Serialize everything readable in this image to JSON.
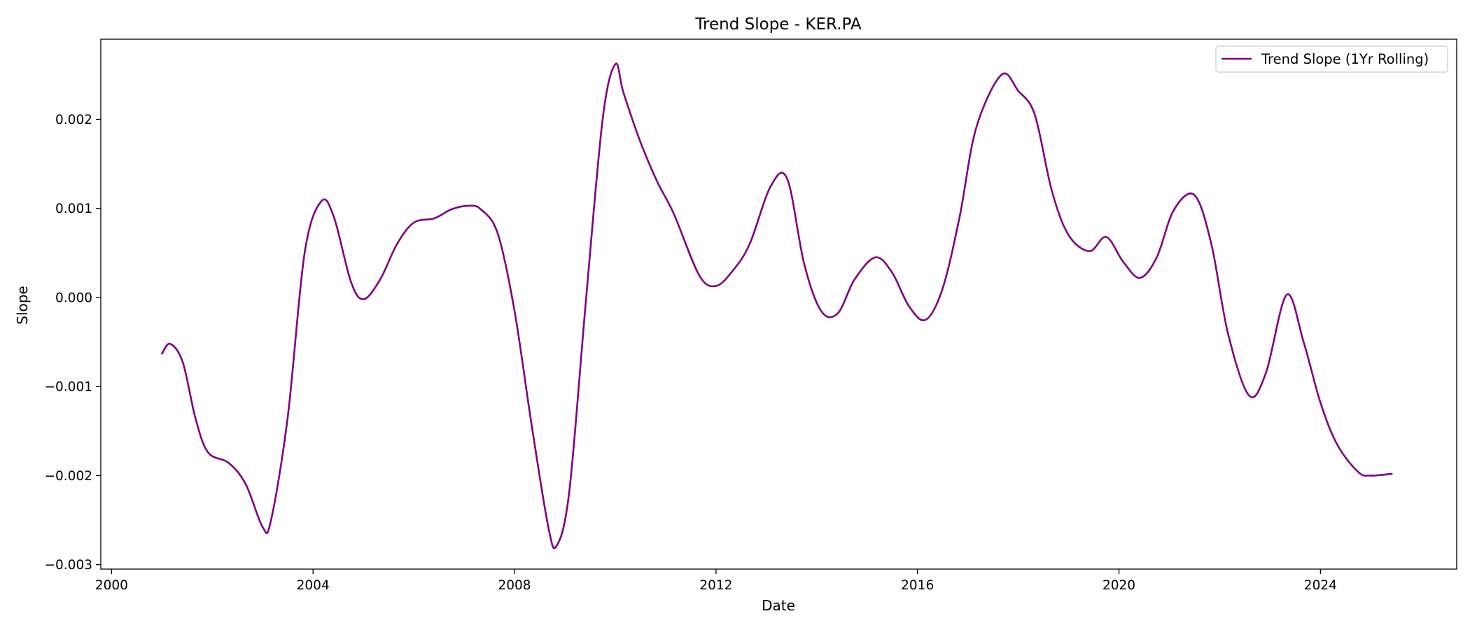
{
  "chart_data": {
    "type": "line",
    "title": "Trend Slope - KER.PA",
    "xlabel": "Date",
    "ylabel": "Slope",
    "xlim": [
      "1999-10-15",
      "2026-09-15"
    ],
    "ylim": [
      -0.00305,
      0.0029
    ],
    "x_ticks": [
      "2000-01-01",
      "2004-01-01",
      "2008-01-01",
      "2012-01-01",
      "2016-01-01",
      "2020-01-01",
      "2024-01-01"
    ],
    "x_tick_labels": [
      "2000",
      "2004",
      "2008",
      "2012",
      "2016",
      "2020",
      "2024"
    ],
    "y_ticks": [
      -0.003,
      -0.002,
      -0.001,
      0.0,
      0.001,
      0.002
    ],
    "y_tick_labels": [
      "−0.003",
      "−0.002",
      "−0.001",
      "0.000",
      "0.001",
      "0.002"
    ],
    "grid": false,
    "legend": {
      "position": "top-right",
      "entries": [
        "Trend Slope (1Yr Rolling)"
      ]
    },
    "colors": {
      "series": "#800080",
      "axes": "#000000",
      "legend_border": "#cccccc"
    },
    "series": [
      {
        "name": "Trend Slope (1Yr Rolling)",
        "x": [
          "2001-01-01",
          "2001-03-01",
          "2001-06-01",
          "2001-09-01",
          "2001-12-01",
          "2002-05-01",
          "2002-09-01",
          "2003-01-01",
          "2003-03-01",
          "2003-07-01",
          "2003-11-01",
          "2004-03-01",
          "2004-06-01",
          "2004-10-01",
          "2005-01-01",
          "2005-05-01",
          "2005-09-01",
          "2006-01-01",
          "2006-06-01",
          "2006-10-01",
          "2007-02-01",
          "2007-05-01",
          "2007-09-01",
          "2008-01-01",
          "2008-05-01",
          "2008-09-01",
          "2008-11-01",
          "2009-02-01",
          "2009-06-01",
          "2009-10-01",
          "2010-01-01",
          "2010-03-01",
          "2010-07-01",
          "2010-11-01",
          "2011-03-01",
          "2011-09-01",
          "2012-01-01",
          "2012-05-01",
          "2012-09-01",
          "2013-02-01",
          "2013-06-01",
          "2013-10-01",
          "2014-02-01",
          "2014-06-01",
          "2014-10-01",
          "2015-03-01",
          "2015-07-01",
          "2015-11-01",
          "2016-03-01",
          "2016-07-01",
          "2016-11-01",
          "2017-03-01",
          "2017-09-01",
          "2018-01-01",
          "2018-05-01",
          "2018-09-01",
          "2019-01-01",
          "2019-06-01",
          "2019-10-01",
          "2020-02-01",
          "2020-06-01",
          "2020-10-01",
          "2021-02-01",
          "2021-07-01",
          "2021-11-01",
          "2022-03-01",
          "2022-08-01",
          "2022-12-01",
          "2023-05-01",
          "2023-09-01",
          "2024-01-01",
          "2024-05-01",
          "2024-10-01",
          "2025-01-01",
          "2025-06-01"
        ],
        "values": [
          -0.00063,
          -0.00052,
          -0.00073,
          -0.00136,
          -0.00174,
          -0.00186,
          -0.0021,
          -0.00258,
          -0.00251,
          -0.00135,
          0.0005,
          0.00108,
          0.0009,
          0.00018,
          -2e-05,
          0.0002,
          0.0006,
          0.00084,
          0.00089,
          0.00099,
          0.00103,
          0.00099,
          0.00072,
          -0.00015,
          -0.0014,
          -0.00257,
          -0.00279,
          -0.00218,
          -5e-05,
          0.002,
          0.00262,
          0.0023,
          0.00175,
          0.0013,
          0.00094,
          0.00025,
          0.00013,
          0.0003,
          0.0006,
          0.00125,
          0.00133,
          0.00038,
          -0.00015,
          -0.00018,
          0.0002,
          0.00045,
          0.00028,
          -0.0001,
          -0.00025,
          0.0001,
          0.0009,
          0.0019,
          0.0025,
          0.00232,
          0.00205,
          0.0012,
          0.0007,
          0.00052,
          0.00068,
          0.0004,
          0.00022,
          0.00045,
          0.00098,
          0.00115,
          0.0006,
          -0.0004,
          -0.0011,
          -0.00085,
          3e-05,
          -0.0005,
          -0.00118,
          -0.00165,
          -0.00196,
          -0.002,
          -0.00198
        ]
      }
    ]
  }
}
